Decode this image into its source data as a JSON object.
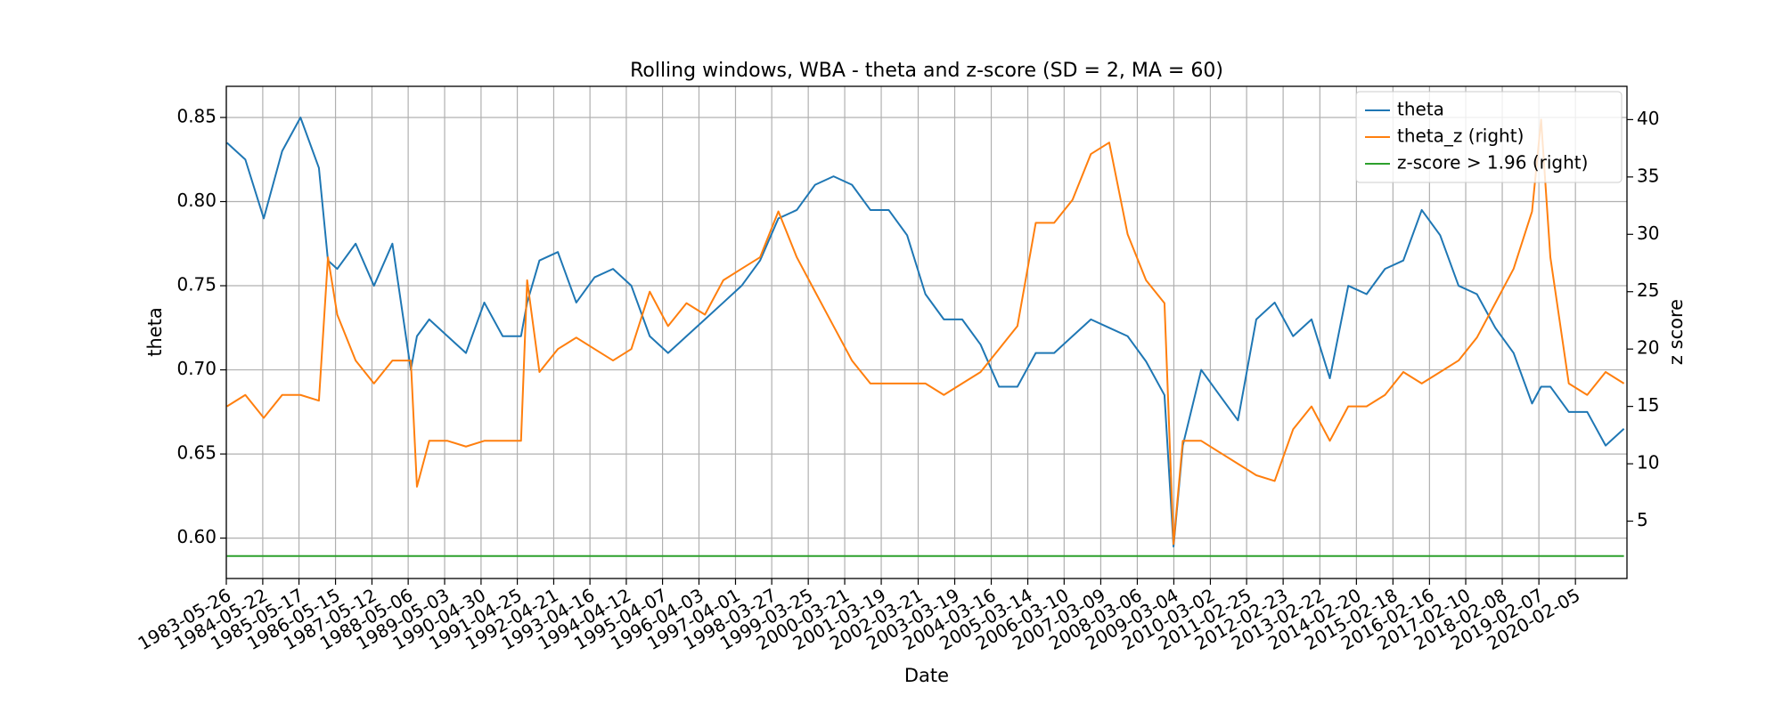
{
  "chart_data": {
    "type": "line",
    "title": "Rolling windows, WBA - theta and z-score (SD = 2, MA = 60)",
    "xlabel": "Date",
    "ylabel": "theta",
    "y2label": "z score",
    "grid": true,
    "legend": "upper right",
    "x": [
      "1983-06-01",
      "1983-12-01",
      "1984-06-01",
      "1984-12-01",
      "1985-06-01",
      "1985-12-01",
      "1986-03-01",
      "1986-06-01",
      "1986-12-01",
      "1987-06-01",
      "1987-12-01",
      "1988-06-01",
      "1988-08-01",
      "1988-12-01",
      "1989-06-01",
      "1989-12-01",
      "1990-06-01",
      "1990-12-01",
      "1991-06-01",
      "1991-08-01",
      "1991-12-01",
      "1992-06-01",
      "1992-12-01",
      "1993-06-01",
      "1993-12-01",
      "1994-06-01",
      "1994-12-01",
      "1995-06-01",
      "1995-12-01",
      "1996-06-01",
      "1996-12-01",
      "1997-06-01",
      "1997-12-01",
      "1998-06-01",
      "1998-12-01",
      "1999-06-01",
      "1999-12-01",
      "2000-06-01",
      "2000-12-01",
      "2001-06-01",
      "2001-12-01",
      "2002-06-01",
      "2002-12-01",
      "2003-06-01",
      "2003-12-01",
      "2004-06-01",
      "2004-12-01",
      "2005-06-01",
      "2005-12-01",
      "2006-06-01",
      "2006-12-01",
      "2007-06-01",
      "2007-12-01",
      "2008-06-01",
      "2008-12-01",
      "2009-03-01",
      "2009-06-01",
      "2009-12-01",
      "2010-06-01",
      "2010-12-01",
      "2011-06-01",
      "2011-12-01",
      "2012-06-01",
      "2012-12-01",
      "2013-06-01",
      "2013-12-01",
      "2014-06-01",
      "2014-12-01",
      "2015-06-01",
      "2015-12-01",
      "2016-06-01",
      "2016-12-01",
      "2017-06-01",
      "2017-12-01",
      "2018-06-01",
      "2018-12-01",
      "2019-03-01",
      "2019-06-01",
      "2019-12-01",
      "2020-06-01",
      "2020-12-01",
      "2021-06-01"
    ],
    "series": [
      {
        "name": "theta",
        "color": "#1f77b4",
        "values": [
          0.835,
          0.825,
          0.79,
          0.83,
          0.85,
          0.82,
          0.765,
          0.76,
          0.775,
          0.75,
          0.775,
          0.7,
          0.72,
          0.73,
          0.72,
          0.71,
          0.74,
          0.72,
          0.72,
          0.74,
          0.765,
          0.77,
          0.74,
          0.755,
          0.76,
          0.75,
          0.72,
          0.71,
          0.72,
          0.73,
          0.74,
          0.75,
          0.765,
          0.79,
          0.795,
          0.81,
          0.815,
          0.81,
          0.795,
          0.795,
          0.78,
          0.745,
          0.73,
          0.73,
          0.715,
          0.69,
          0.69,
          0.71,
          0.71,
          0.72,
          0.73,
          0.725,
          0.72,
          0.705,
          0.685,
          0.595,
          0.655,
          0.7,
          0.685,
          0.67,
          0.73,
          0.74,
          0.72,
          0.73,
          0.695,
          0.75,
          0.745,
          0.76,
          0.765,
          0.795,
          0.78,
          0.75,
          0.745,
          0.725,
          0.71,
          0.68,
          0.69,
          0.69,
          0.675,
          0.675,
          0.655,
          0.665
        ]
      },
      {
        "name": "theta_z (right)",
        "color": "#ff7f0e",
        "axis": "y2",
        "values": [
          15,
          16,
          14,
          16,
          16,
          15.5,
          28,
          23,
          19,
          17,
          19,
          19,
          8,
          12,
          12,
          11.5,
          12,
          12,
          12,
          26,
          18,
          20,
          21,
          20,
          19,
          20,
          25,
          22,
          24,
          23,
          26,
          27,
          28,
          32,
          28,
          25,
          22,
          19,
          17,
          17,
          17,
          17,
          16,
          17,
          18,
          20,
          22,
          31,
          31,
          33,
          37,
          38,
          30,
          26,
          24,
          3,
          12,
          12,
          11,
          10,
          9,
          8.5,
          13,
          15,
          12,
          15,
          15,
          16,
          18,
          17,
          18,
          19,
          21,
          24,
          27,
          32,
          40,
          28,
          17,
          16,
          18,
          17
        ]
      },
      {
        "name": "z-score > 1.96 (right)",
        "color": "#2ca02c",
        "axis": "y2",
        "values": [
          1.96,
          1.96,
          1.96,
          1.96,
          1.96,
          1.96,
          1.96,
          1.96,
          1.96,
          1.96,
          1.96,
          1.96,
          1.96,
          1.96,
          1.96,
          1.96,
          1.96,
          1.96,
          1.96,
          1.96,
          1.96,
          1.96,
          1.96,
          1.96,
          1.96,
          1.96,
          1.96,
          1.96,
          1.96,
          1.96,
          1.96,
          1.96,
          1.96,
          1.96,
          1.96,
          1.96,
          1.96,
          1.96,
          1.96,
          1.96,
          1.96,
          1.96,
          1.96,
          1.96,
          1.96,
          1.96,
          1.96,
          1.96,
          1.96,
          1.96,
          1.96,
          1.96,
          1.96,
          1.96,
          1.96,
          1.96,
          1.96,
          1.96,
          1.96,
          1.96,
          1.96,
          1.96,
          1.96,
          1.96,
          1.96,
          1.96,
          1.96,
          1.96,
          1.96,
          1.96,
          1.96,
          1.96,
          1.96,
          1.96,
          1.96,
          1.96,
          1.96,
          1.96,
          1.96,
          1.96,
          1.96,
          1.96
        ]
      }
    ],
    "xlim": [
      "1983-05-26",
      "2021-07-01"
    ],
    "xticks": [
      "1983-05-26",
      "1984-05-22",
      "1985-05-17",
      "1986-05-15",
      "1987-05-12",
      "1988-05-06",
      "1989-05-03",
      "1990-04-30",
      "1991-04-25",
      "1992-04-21",
      "1993-04-16",
      "1994-04-12",
      "1995-04-07",
      "1996-04-03",
      "1997-04-01",
      "1998-03-27",
      "1999-03-25",
      "2000-03-21",
      "2001-03-19",
      "2002-03-21",
      "2003-03-19",
      "2004-03-16",
      "2005-03-14",
      "2006-03-10",
      "2007-03-09",
      "2008-03-06",
      "2009-03-04",
      "2010-03-02",
      "2011-02-25",
      "2012-02-23",
      "2013-02-22",
      "2014-02-20",
      "2015-02-18",
      "2016-02-16",
      "2017-02-10",
      "2018-02-08",
      "2019-02-07",
      "2020-02-05"
    ],
    "ylim": [
      0.576,
      0.8685
    ],
    "yticks": [
      {
        "value": 0.6,
        "label": "0.60"
      },
      {
        "value": 0.65,
        "label": "0.65"
      },
      {
        "value": 0.7,
        "label": "0.70"
      },
      {
        "value": 0.75,
        "label": "0.75"
      },
      {
        "value": 0.8,
        "label": "0.80"
      },
      {
        "value": 0.85,
        "label": "0.85"
      }
    ],
    "y2lim": [
      0,
      42.9
    ],
    "y2ticks": [
      5,
      10,
      15,
      20,
      25,
      30,
      35,
      40
    ]
  }
}
